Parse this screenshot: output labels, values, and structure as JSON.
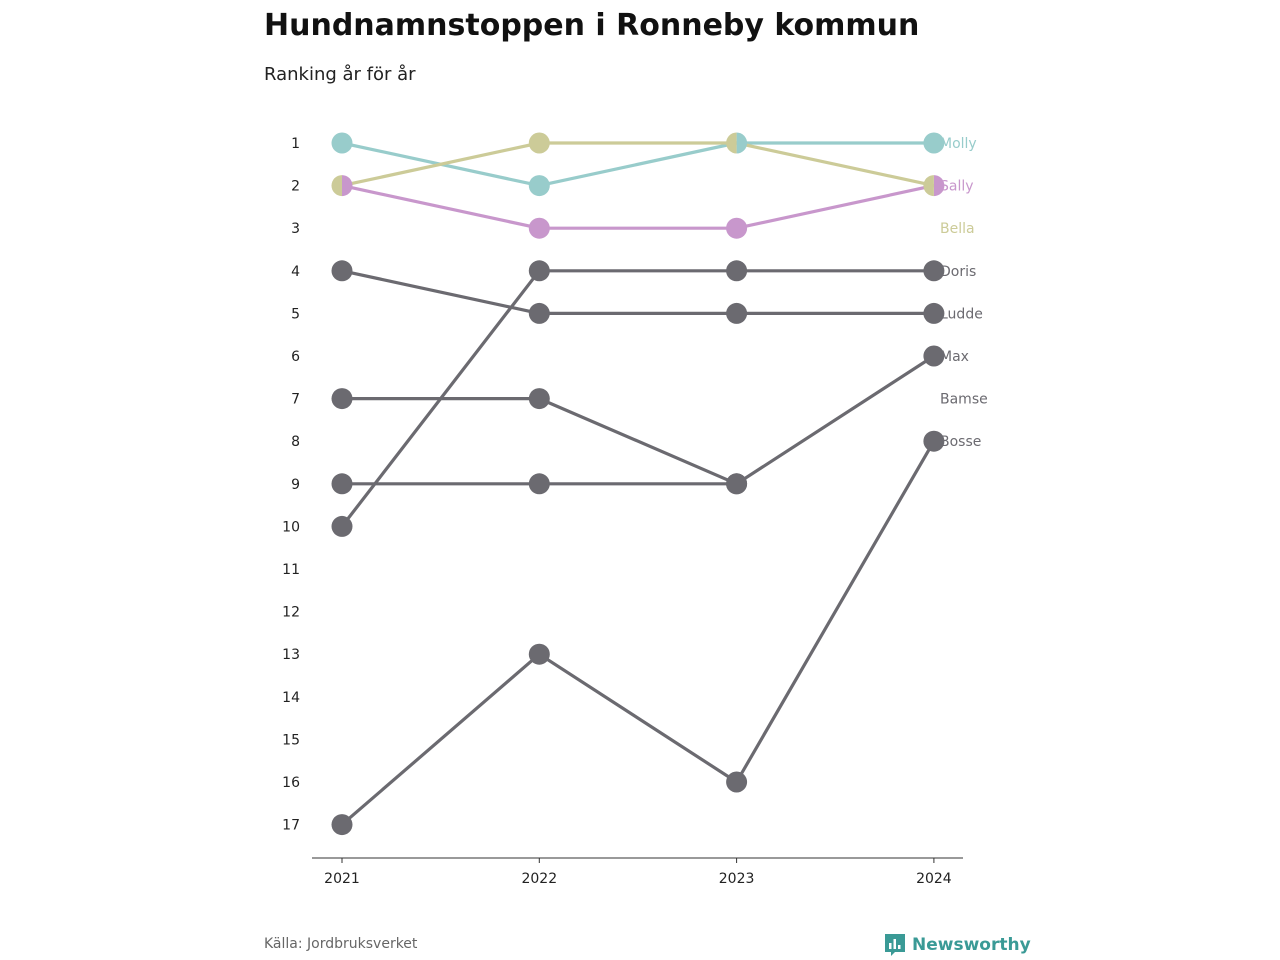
{
  "title": "Hundnamnstoppen i Ronneby kommun",
  "subtitle": "Ranking år för år",
  "source": "Källa: Jordbruksverket",
  "brand": "Newsworthy",
  "colors": {
    "Molly": "#98cccb",
    "Sally": "#c897cc",
    "Bella": "#cccb98",
    "other": "#6b6a70",
    "brand": "#3a9a96"
  },
  "chart_data": {
    "type": "line",
    "x": [
      "2021",
      "2022",
      "2023",
      "2024"
    ],
    "yticks": [
      "1",
      "2",
      "3",
      "4",
      "5",
      "6",
      "7",
      "8",
      "9",
      "10",
      "11",
      "12",
      "13",
      "14",
      "15",
      "16",
      "17"
    ],
    "ylim": [
      1,
      17
    ],
    "yreversed": true,
    "series": [
      {
        "name": "Molly",
        "values": [
          1,
          2,
          1,
          1
        ],
        "highlight": true
      },
      {
        "name": "Sally",
        "values": [
          2,
          3,
          3,
          2
        ],
        "highlight": true
      },
      {
        "name": "Bella",
        "values": [
          2,
          1,
          1,
          2
        ],
        "highlight": true
      },
      {
        "name": "Doris",
        "values": [
          10,
          4,
          4,
          4
        ],
        "highlight": false
      },
      {
        "name": "Ludde",
        "values": [
          4,
          5,
          5,
          5
        ],
        "highlight": false
      },
      {
        "name": "Max",
        "values": [
          7,
          7,
          9,
          6
        ],
        "highlight": false
      },
      {
        "name": "Bamse",
        "values": [
          9,
          9,
          9,
          null
        ],
        "highlight": false
      },
      {
        "name": "Bosse",
        "values": [
          17,
          13,
          16,
          8
        ],
        "highlight": false
      }
    ],
    "end_labels": [
      "Molly",
      "Sally",
      "Bella",
      "Doris",
      "Ludde",
      "Max",
      "Bamse",
      "Bosse"
    ]
  }
}
